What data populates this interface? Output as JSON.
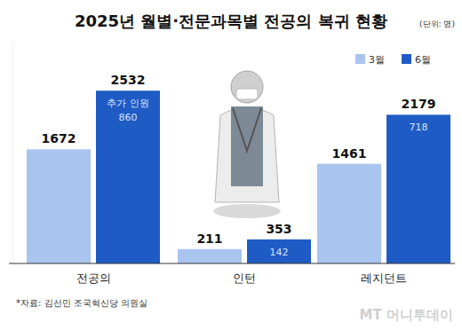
{
  "chart_data": {
    "type": "bar",
    "title": "2025년 월별·전문과목별 전공의 복귀 현황",
    "unit": "(단위: 명)",
    "categories": [
      "전공의",
      "인턴",
      "레지던트"
    ],
    "series": [
      {
        "name": "3월",
        "color": "#a9c4ef",
        "values": [
          1672,
          211,
          1461
        ]
      },
      {
        "name": "6월",
        "color": "#1f5bc4",
        "values": [
          2532,
          353,
          2179
        ],
        "additional_label": "추가 인원",
        "additional": [
          860,
          142,
          718
        ]
      }
    ],
    "ylim": [
      0,
      3250
    ],
    "tick_labels": false,
    "grid": false,
    "data_labels": true,
    "legend": "top-right",
    "source": "*자료: 김선민 조국혁신당 의원실",
    "watermark": "MT 머니투데이"
  }
}
